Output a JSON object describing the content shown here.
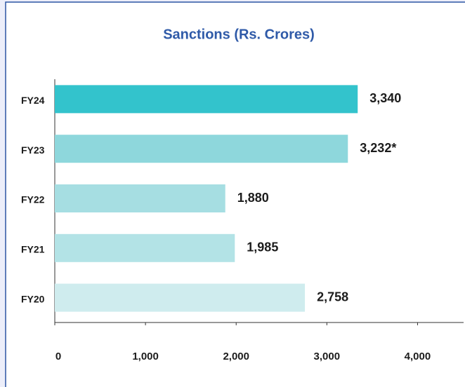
{
  "chart_data": {
    "type": "bar",
    "orientation": "horizontal",
    "title": "Sanctions (Rs. Crores)",
    "categories": [
      "FY24",
      "FY23",
      "FY22",
      "FY21",
      "FY20"
    ],
    "values": [
      3340,
      3232,
      1880,
      1985,
      2758
    ],
    "value_labels": [
      "3,340",
      "3,232*",
      "1,880",
      "1,985",
      "2,758"
    ],
    "colors": [
      "#33c3cc",
      "#8ed7dc",
      "#a6dee2",
      "#b3e3e6",
      "#cfecee"
    ],
    "xlim": [
      0,
      4500
    ],
    "xticks": [
      0,
      {
        "value": 1000,
        "label": "1,000"
      },
      {
        "value": 2000,
        "label": "2,000"
      },
      {
        "value": 3000,
        "label": "3,000"
      },
      {
        "value": 4000,
        "label": "4,000"
      }
    ],
    "grid": false
  }
}
